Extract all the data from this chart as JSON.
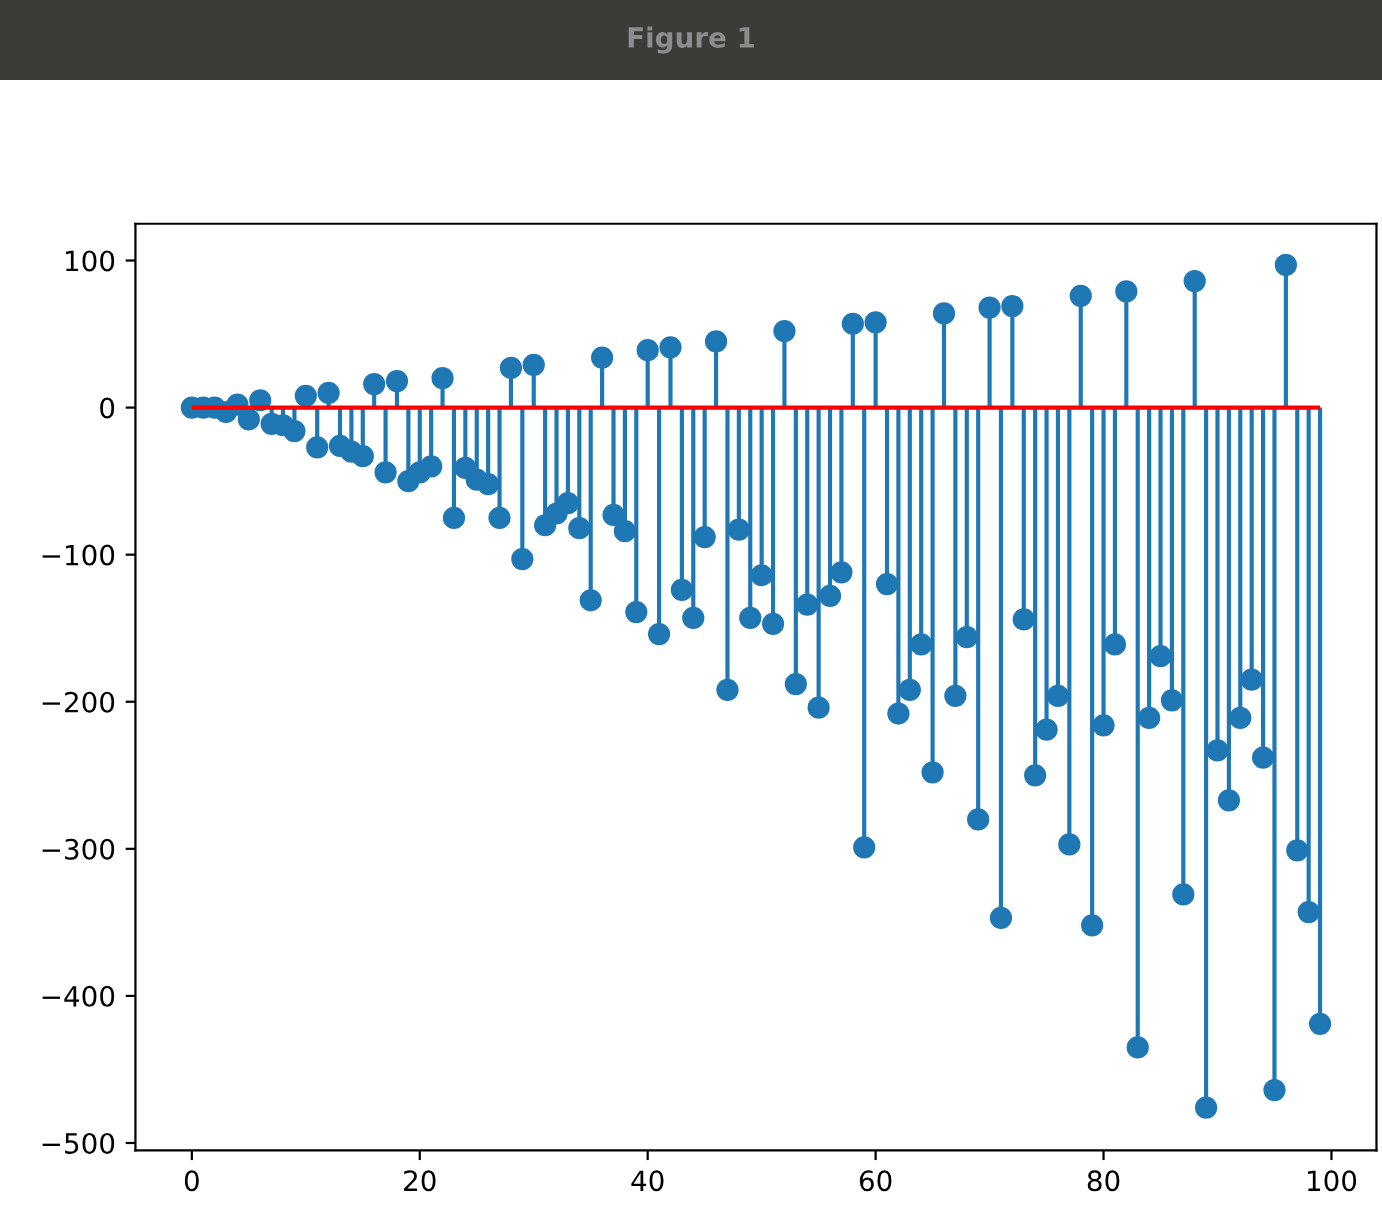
{
  "chart_data": {
    "type": "lollipop",
    "title": "Figure 1",
    "x": [
      0,
      1,
      2,
      3,
      4,
      5,
      6,
      7,
      8,
      9,
      10,
      11,
      12,
      13,
      14,
      15,
      16,
      17,
      18,
      19,
      20,
      21,
      22,
      23,
      24,
      25,
      26,
      27,
      28,
      29,
      30,
      31,
      32,
      33,
      34,
      35,
      36,
      37,
      38,
      39,
      40,
      41,
      42,
      43,
      44,
      45,
      46,
      47,
      48,
      49,
      50,
      51,
      52,
      53,
      54,
      55,
      56,
      57,
      58,
      59,
      60,
      61,
      62,
      63,
      64,
      65,
      66,
      67,
      68,
      69,
      70,
      71,
      72,
      73,
      74,
      75,
      76,
      77,
      78,
      79,
      80,
      81,
      82,
      83,
      84,
      85,
      86,
      87,
      88,
      89,
      90,
      91,
      92,
      93,
      94,
      95,
      96,
      97,
      98,
      99
    ],
    "series": [
      {
        "color": "#1f77b4",
        "values": [
          0,
          0,
          0,
          -3,
          2,
          -8,
          5,
          -11,
          -12,
          -16,
          8,
          -27,
          10,
          -26,
          -30,
          -33,
          16,
          -44,
          18,
          -50,
          -44,
          -40,
          20,
          -75,
          -41,
          -49,
          -52,
          -75,
          27,
          -103,
          29,
          -80,
          -72,
          -65,
          -82,
          -131,
          34,
          -73,
          -84,
          -139,
          39,
          -154,
          41,
          -124,
          -143,
          -88,
          45,
          -192,
          -83,
          -143,
          -114,
          -147,
          52,
          -188,
          -134,
          -204,
          -128,
          -112,
          57,
          -299,
          58,
          -120,
          -208,
          -192,
          -161,
          -248,
          64,
          -196,
          -156,
          -280,
          68,
          -347,
          69,
          -144,
          -250,
          -219,
          -196,
          -297,
          76,
          -352,
          -216,
          -161,
          79,
          -435,
          -211,
          -169,
          -199,
          -331,
          86,
          -476,
          -233,
          -267,
          -211,
          -185,
          -238,
          -464,
          97,
          -301,
          -343,
          -419
        ]
      }
    ],
    "ref_lines": [
      {
        "axis": "y",
        "value": 0,
        "color": "#ff0000"
      }
    ],
    "marker": "circle",
    "xlim": [
      -4.95,
      103.95
    ],
    "ylim": [
      -505,
      125
    ],
    "xticks": [
      0,
      20,
      40,
      60,
      80,
      100
    ],
    "yticks": [
      -500,
      -400,
      -300,
      -200,
      -100,
      0,
      100
    ],
    "grid": false
  }
}
